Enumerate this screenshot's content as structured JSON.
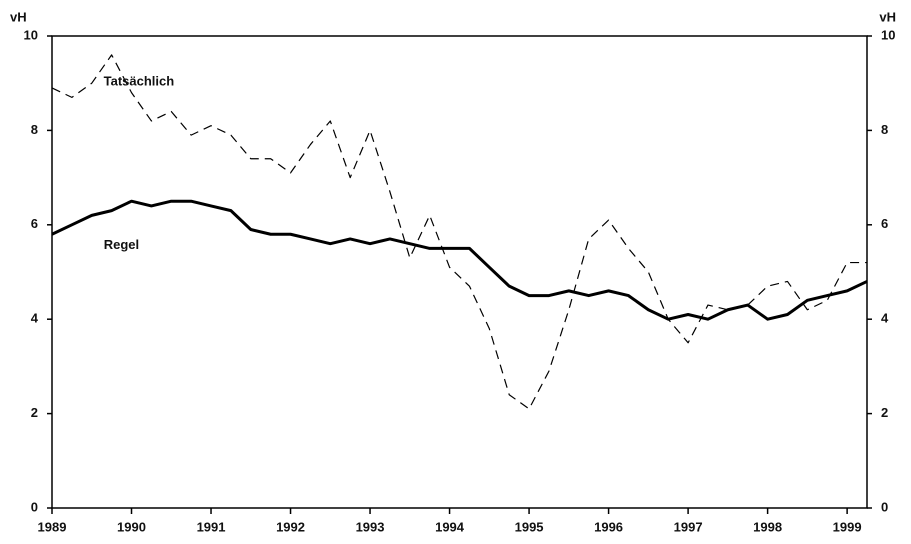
{
  "chart_data": {
    "type": "line",
    "y_label": "vH",
    "y2_label": "vH",
    "x": [
      1989,
      1989.25,
      1989.5,
      1989.75,
      1990,
      1990.25,
      1990.5,
      1990.75,
      1991,
      1991.25,
      1991.5,
      1991.75,
      1992,
      1992.25,
      1992.5,
      1992.75,
      1993,
      1993.25,
      1993.5,
      1993.75,
      1994,
      1994.25,
      1994.5,
      1994.75,
      1995,
      1995.25,
      1995.5,
      1995.75,
      1996,
      1996.25,
      1996.5,
      1996.75,
      1997,
      1997.25,
      1997.5,
      1997.75,
      1998,
      1998.25,
      1998.5,
      1998.75,
      1999,
      1999.25
    ],
    "series": [
      {
        "name": "Tatsächlich",
        "color": "#000000",
        "style": "dashed",
        "values": [
          8.9,
          8.7,
          9.0,
          9.6,
          8.8,
          8.2,
          8.4,
          7.9,
          8.1,
          7.9,
          7.4,
          7.4,
          7.1,
          7.7,
          8.2,
          7.0,
          8.0,
          6.7,
          5.3,
          6.2,
          5.1,
          4.7,
          3.8,
          2.4,
          2.1,
          2.9,
          4.2,
          5.7,
          6.1,
          5.5,
          5.0,
          4.0,
          3.5,
          4.3,
          4.2,
          4.3,
          4.7,
          4.8,
          4.2,
          4.4,
          5.2,
          5.2
        ]
      },
      {
        "name": "Regel",
        "color": "#000000",
        "style": "solid",
        "values": [
          5.8,
          6.0,
          6.2,
          6.3,
          6.5,
          6.4,
          6.5,
          6.5,
          6.4,
          6.3,
          5.9,
          5.8,
          5.8,
          5.7,
          5.6,
          5.7,
          5.6,
          5.7,
          5.6,
          5.5,
          5.5,
          5.5,
          5.1,
          4.7,
          4.5,
          4.5,
          4.6,
          4.5,
          4.6,
          4.5,
          4.2,
          4.0,
          4.1,
          4.0,
          4.2,
          4.3,
          4.0,
          4.1,
          4.4,
          4.5,
          4.6,
          4.8
        ]
      }
    ],
    "xlim": [
      1989,
      1999.25
    ],
    "xticks": [
      1989,
      1990,
      1991,
      1992,
      1993,
      1994,
      1995,
      1996,
      1997,
      1998,
      1999
    ],
    "ylim": [
      0,
      10
    ],
    "yticks": [
      0,
      2,
      4,
      6,
      8,
      10
    ],
    "y2lim": [
      0,
      10
    ],
    "y2ticks": [
      0,
      2,
      4,
      6,
      8,
      10
    ]
  }
}
